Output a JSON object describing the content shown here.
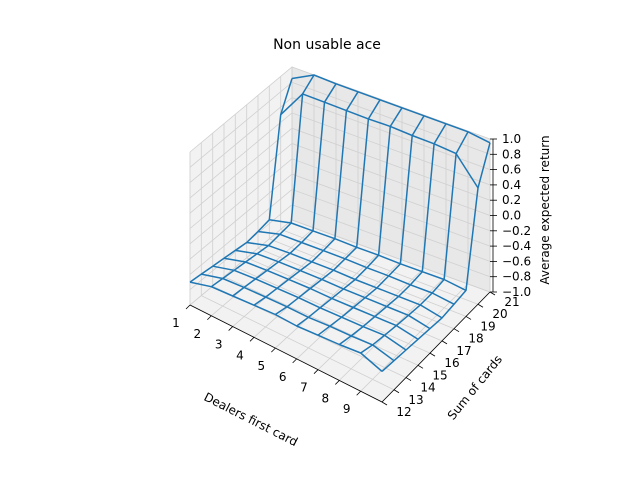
{
  "chart_data": {
    "type": "surface-wireframe-3d",
    "title": "Non usable ace",
    "xlabel": "Dealers first card",
    "ylabel": "Sum of cards",
    "zlabel": "Average expected return",
    "x": [
      1,
      2,
      3,
      4,
      5,
      6,
      7,
      8,
      9,
      10
    ],
    "y": [
      12,
      13,
      14,
      15,
      16,
      17,
      18,
      19,
      20,
      21
    ],
    "xticks": [
      "1",
      "2",
      "3",
      "4",
      "5",
      "6",
      "7",
      "8",
      "9"
    ],
    "yticks": [
      "12",
      "13",
      "14",
      "15",
      "16",
      "17",
      "18",
      "19",
      "20",
      "21"
    ],
    "zticks": [
      "−1.0",
      "−0.8",
      "−0.6",
      "−0.4",
      "−0.2",
      "0.0",
      "0.2",
      "0.4",
      "0.6",
      "0.8",
      "1.0"
    ],
    "zlim": [
      -1.0,
      1.0
    ],
    "z_rows_by_sum": [
      [
        -0.7,
        -0.62,
        -0.6,
        -0.58,
        -0.56,
        -0.57,
        -0.55,
        -0.53,
        -0.5,
        -0.6
      ],
      [
        -0.72,
        -0.64,
        -0.62,
        -0.61,
        -0.6,
        -0.6,
        -0.58,
        -0.57,
        -0.55,
        -0.62
      ],
      [
        -0.74,
        -0.66,
        -0.64,
        -0.63,
        -0.62,
        -0.62,
        -0.61,
        -0.6,
        -0.58,
        -0.64
      ],
      [
        -0.76,
        -0.68,
        -0.66,
        -0.65,
        -0.64,
        -0.64,
        -0.63,
        -0.62,
        -0.61,
        -0.66
      ],
      [
        -0.78,
        -0.7,
        -0.68,
        -0.67,
        -0.66,
        -0.66,
        -0.65,
        -0.64,
        -0.63,
        -0.68
      ],
      [
        -0.8,
        -0.72,
        -0.7,
        -0.69,
        -0.68,
        -0.68,
        -0.67,
        -0.66,
        -0.65,
        -0.7
      ],
      [
        -0.78,
        -0.7,
        -0.69,
        -0.68,
        -0.67,
        -0.67,
        -0.66,
        -0.66,
        -0.65,
        -0.68
      ],
      [
        -0.75,
        -0.68,
        -0.67,
        -0.66,
        -0.66,
        -0.65,
        -0.65,
        -0.64,
        -0.63,
        -0.66
      ],
      [
        0.5,
        0.88,
        0.88,
        0.88,
        0.88,
        0.89,
        0.88,
        0.88,
        0.86,
        0.52
      ],
      [
        0.85,
        1.0,
        0.99,
        0.99,
        0.99,
        0.99,
        0.99,
        0.99,
        0.99,
        0.95
      ]
    ],
    "line_color": "#1f77b4",
    "pane_color": "#f2f2f2",
    "grid": true
  }
}
